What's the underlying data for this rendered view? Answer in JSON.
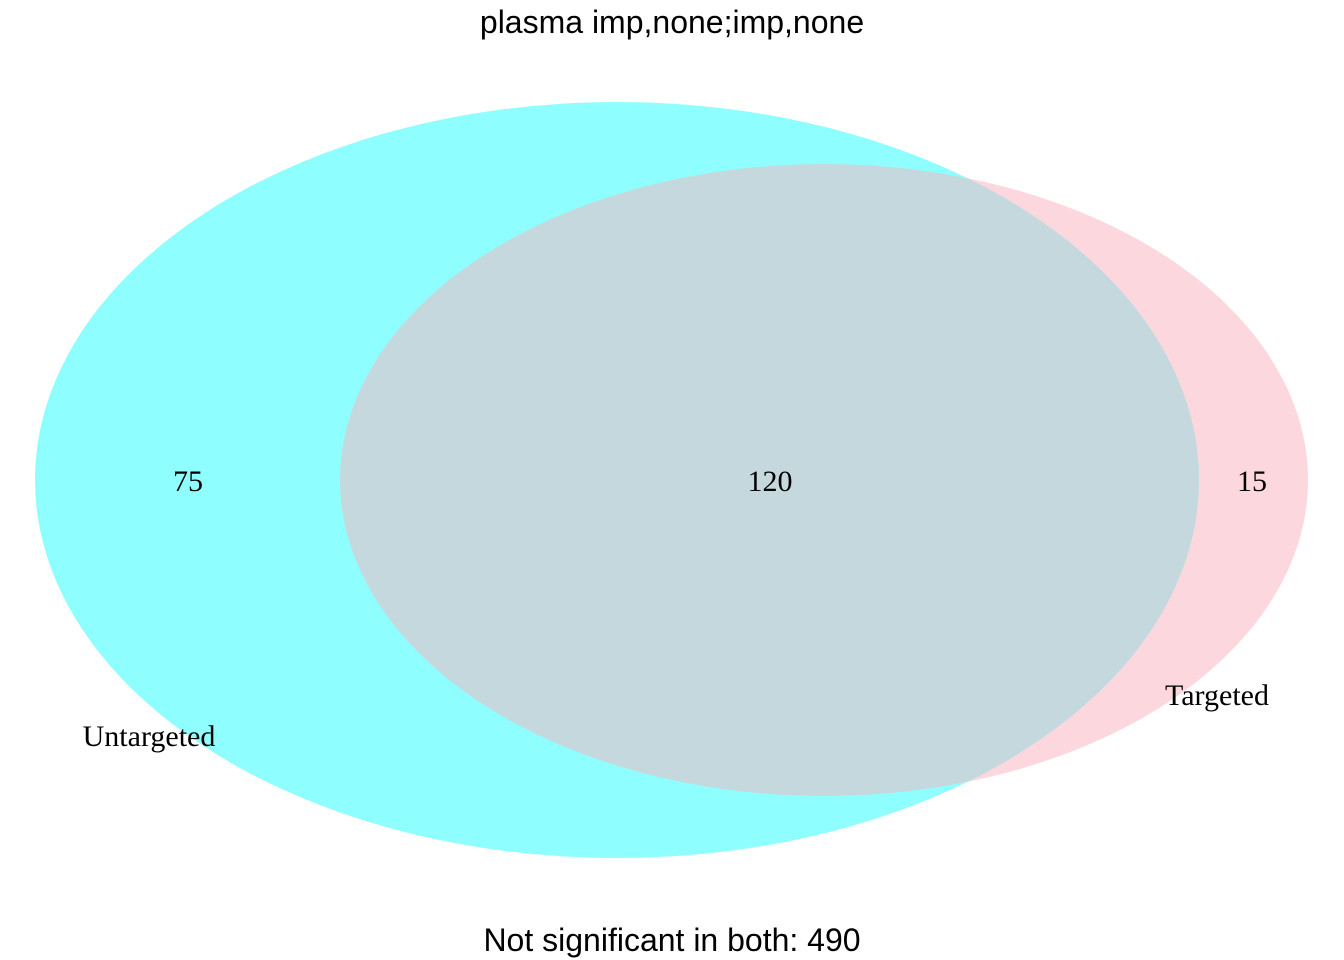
{
  "title": "plasma imp,none;imp,none",
  "sets": [
    {
      "name": "Untargeted",
      "only_count": "75",
      "color": "#8ffeff"
    },
    {
      "name": "Targeted",
      "only_count": "15",
      "color": "#fdd7de"
    }
  ],
  "intersection": {
    "count": "120",
    "color": "#c5d8de"
  },
  "footer": "Not significant in both: 490"
}
